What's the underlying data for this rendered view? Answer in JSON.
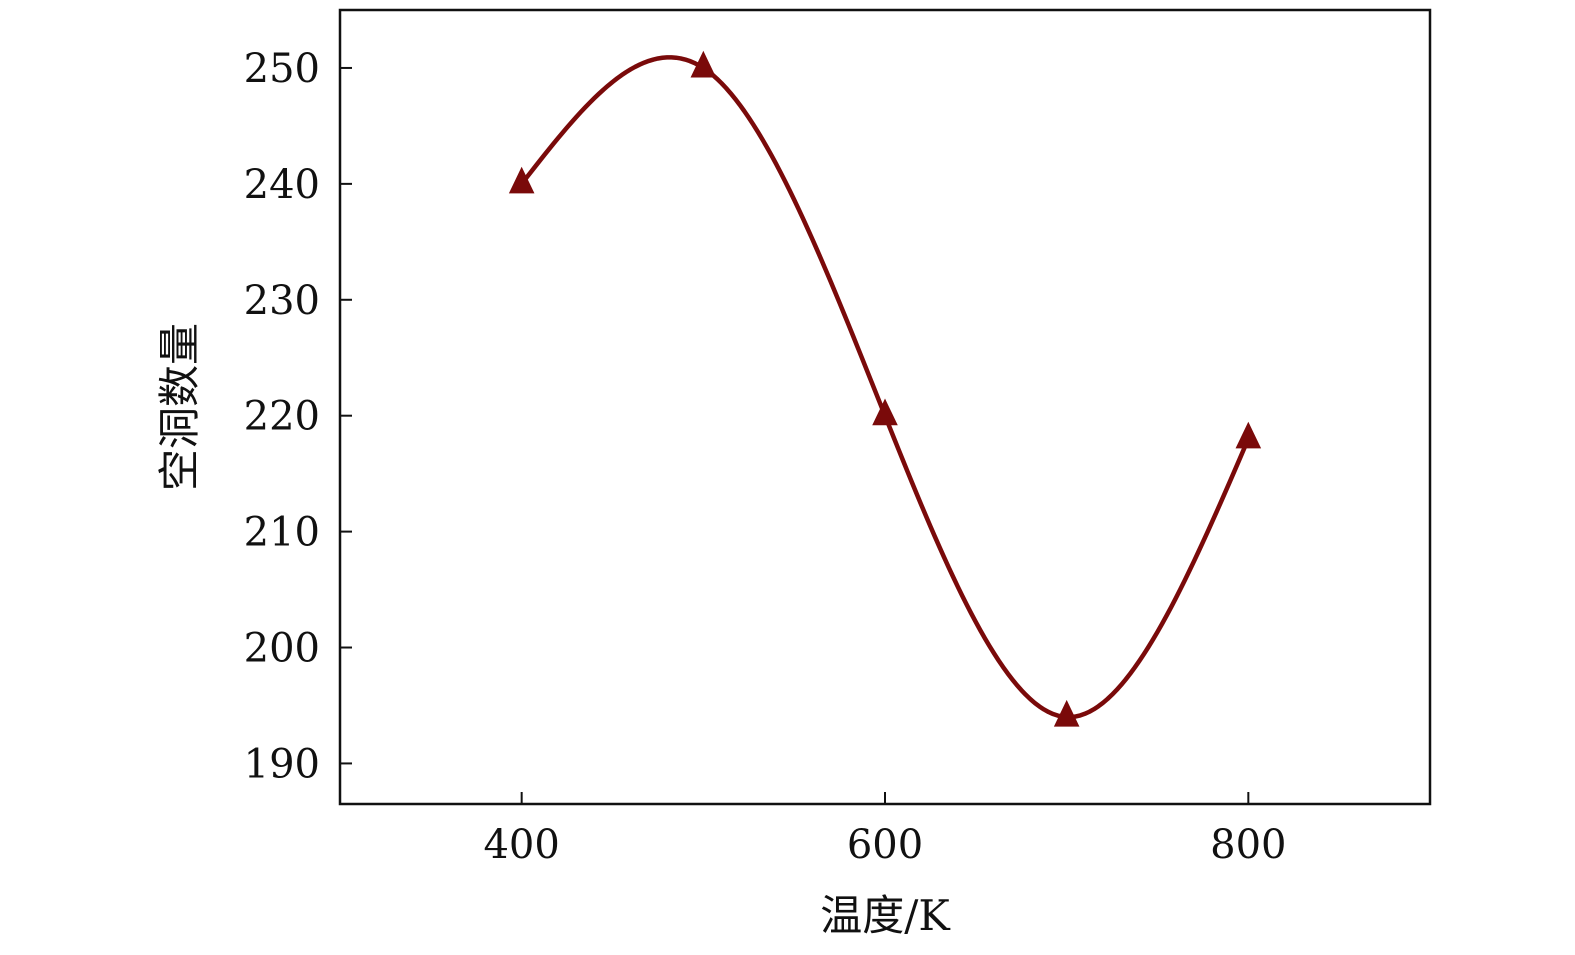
{
  "chart_data": {
    "type": "line",
    "xlabel": "温度/K",
    "ylabel": "空洞数量",
    "xlim": [
      300,
      900
    ],
    "ylim": [
      186.5,
      255
    ],
    "xticks": [
      400,
      600,
      800
    ],
    "yticks": [
      190,
      200,
      210,
      220,
      230,
      240,
      250
    ],
    "grid": false,
    "legend": "none",
    "marker": "triangle",
    "line_style": "smooth",
    "color": "#7a0a0a",
    "series": [
      {
        "x": [
          400,
          500,
          600,
          700,
          800
        ],
        "y": [
          240,
          250,
          220,
          194,
          218
        ]
      }
    ]
  }
}
